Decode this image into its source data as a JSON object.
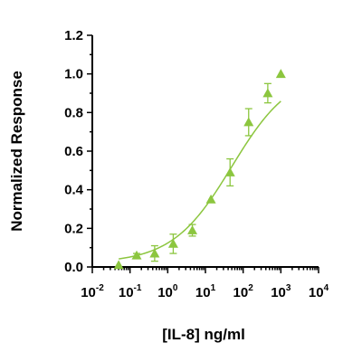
{
  "chart_data": {
    "type": "scatter",
    "title": "",
    "xlabel": "[IL-8] ng/ml",
    "ylabel": "Normalized Response",
    "x_scale": "log",
    "xlim": [
      0.01,
      10000
    ],
    "ylim": [
      0,
      1.2
    ],
    "y_ticks": [
      "0.0",
      "0.2",
      "0.4",
      "0.6",
      "0.8",
      "1.0",
      "1.2"
    ],
    "x_ticks": [
      {
        "base": "10",
        "exp": "-2",
        "value": 0.01
      },
      {
        "base": "10",
        "exp": "-1",
        "value": 0.1
      },
      {
        "base": "10",
        "exp": "0",
        "value": 1
      },
      {
        "base": "10",
        "exp": "1",
        "value": 10
      },
      {
        "base": "10",
        "exp": "2",
        "value": 100
      },
      {
        "base": "10",
        "exp": "3",
        "value": 1000
      },
      {
        "base": "10",
        "exp": "4",
        "value": 10000
      }
    ],
    "grid": false,
    "color": "#8cc63f",
    "marker": "triangle",
    "series": [
      {
        "points": [
          {
            "x": 0.05,
            "y": 0.01,
            "err": 0.0
          },
          {
            "x": 0.15,
            "y": 0.06,
            "err": 0.01
          },
          {
            "x": 0.45,
            "y": 0.07,
            "err": 0.04
          },
          {
            "x": 1.4,
            "y": 0.12,
            "err": 0.05
          },
          {
            "x": 4.5,
            "y": 0.19,
            "err": 0.03
          },
          {
            "x": 14,
            "y": 0.35,
            "err": 0.0
          },
          {
            "x": 45,
            "y": 0.49,
            "err": 0.07
          },
          {
            "x": 140,
            "y": 0.75,
            "err": 0.07
          },
          {
            "x": 450,
            "y": 0.9,
            "err": 0.05
          },
          {
            "x": 1000,
            "y": 1.0,
            "err": 0.0
          }
        ],
        "fit": {
          "model": "4PL",
          "bottom": 0.02,
          "top": 1.02,
          "ec50": 50,
          "hill": 0.55
        }
      }
    ]
  }
}
